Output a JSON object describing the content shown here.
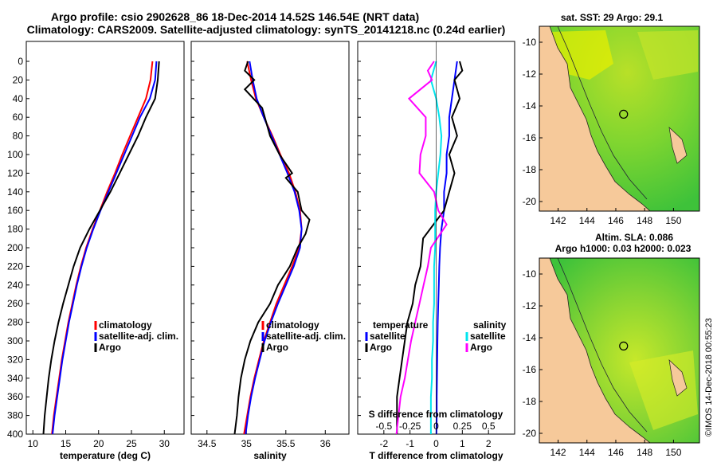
{
  "header": {
    "line1": "Argo profile: csio 2902628_86 18-Dec-2014 14.52S 146.54E (NRT data)",
    "line2": "Climatology: CARS2009. Satellite-adjusted climatology: synTS_20141218.nc (0.24d earlier)"
  },
  "watermark": "©IMOS 14-Dec-2018 00:55:23",
  "colors": {
    "climatology": "#ff0000",
    "satellite": "#0000ff",
    "argo": "#000000",
    "temp_diff_argo": "#000000",
    "salinity_sat": "#00e5ee",
    "salinity_argo": "#ff00ff",
    "land": "#f6c99a",
    "ocean_green": "#3ec23a",
    "ocean_light": "#a8e02a",
    "ocean_yellow": "#e8f000"
  },
  "depth_ticks": [
    "0",
    "20",
    "40",
    "60",
    "80",
    "100",
    "120",
    "140",
    "160",
    "180",
    "200",
    "220",
    "240",
    "260",
    "280",
    "300",
    "320",
    "340",
    "360",
    "380",
    "400"
  ],
  "chart_data": [
    {
      "type": "line",
      "id": "temperature",
      "xlabel": "temperature (deg C)",
      "ylabel": "depth",
      "xlim": [
        9,
        33
      ],
      "ylim": [
        400,
        0
      ],
      "x_ticks": [
        "10",
        "15",
        "20",
        "25",
        "30"
      ],
      "legend": [
        "climatology",
        "satellite-adj. clim.",
        "Argo"
      ],
      "series": [
        {
          "name": "climatology",
          "points": [
            [
              28.2,
              0
            ],
            [
              27.9,
              20
            ],
            [
              27.2,
              40
            ],
            [
              26.0,
              60
            ],
            [
              24.8,
              80
            ],
            [
              23.6,
              100
            ],
            [
              22.5,
              120
            ],
            [
              21.3,
              140
            ],
            [
              20.2,
              160
            ],
            [
              19.1,
              180
            ],
            [
              18.1,
              200
            ],
            [
              17.3,
              220
            ],
            [
              16.6,
              240
            ],
            [
              16.0,
              260
            ],
            [
              15.4,
              280
            ],
            [
              14.9,
              300
            ],
            [
              14.4,
              320
            ],
            [
              14.0,
              340
            ],
            [
              13.6,
              360
            ],
            [
              13.2,
              380
            ],
            [
              12.9,
              400
            ]
          ]
        },
        {
          "name": "satellite-adj. clim.",
          "points": [
            [
              28.8,
              0
            ],
            [
              28.6,
              20
            ],
            [
              27.8,
              40
            ],
            [
              26.3,
              60
            ],
            [
              25.1,
              80
            ],
            [
              23.9,
              100
            ],
            [
              22.7,
              120
            ],
            [
              21.5,
              140
            ],
            [
              20.3,
              160
            ],
            [
              19.2,
              180
            ],
            [
              18.2,
              200
            ],
            [
              17.4,
              220
            ],
            [
              16.7,
              240
            ],
            [
              16.1,
              260
            ],
            [
              15.5,
              280
            ],
            [
              15.0,
              300
            ],
            [
              14.5,
              320
            ],
            [
              14.1,
              340
            ],
            [
              13.7,
              360
            ],
            [
              13.3,
              380
            ],
            [
              13.0,
              400
            ]
          ]
        },
        {
          "name": "Argo",
          "points": [
            [
              29.2,
              0
            ],
            [
              29.0,
              20
            ],
            [
              28.6,
              40
            ],
            [
              27.2,
              60
            ],
            [
              26.0,
              80
            ],
            [
              24.6,
              100
            ],
            [
              23.2,
              120
            ],
            [
              21.8,
              140
            ],
            [
              20.2,
              160
            ],
            [
              18.6,
              180
            ],
            [
              17.2,
              200
            ],
            [
              16.2,
              220
            ],
            [
              15.4,
              240
            ],
            [
              14.6,
              260
            ],
            [
              13.9,
              280
            ],
            [
              13.3,
              300
            ],
            [
              12.8,
              320
            ],
            [
              12.4,
              340
            ],
            [
              12.1,
              360
            ],
            [
              11.8,
              380
            ],
            [
              11.6,
              400
            ]
          ]
        }
      ]
    },
    {
      "type": "line",
      "id": "salinity",
      "xlabel": "salinity",
      "ylabel": "depth",
      "xlim": [
        34.3,
        36.3
      ],
      "ylim": [
        400,
        0
      ],
      "x_ticks": [
        "34.5",
        "35",
        "35.5",
        "36"
      ],
      "legend": [
        "climatology",
        "satellite-adj. clim.",
        "Argo"
      ],
      "series": [
        {
          "name": "climatology",
          "points": [
            [
              35.01,
              0
            ],
            [
              35.06,
              20
            ],
            [
              35.12,
              40
            ],
            [
              35.22,
              60
            ],
            [
              35.33,
              80
            ],
            [
              35.43,
              100
            ],
            [
              35.54,
              120
            ],
            [
              35.62,
              140
            ],
            [
              35.68,
              160
            ],
            [
              35.7,
              180
            ],
            [
              35.67,
              200
            ],
            [
              35.58,
              220
            ],
            [
              35.48,
              240
            ],
            [
              35.38,
              260
            ],
            [
              35.3,
              280
            ],
            [
              35.22,
              300
            ],
            [
              35.16,
              320
            ],
            [
              35.1,
              340
            ],
            [
              35.05,
              360
            ],
            [
              35.01,
              380
            ],
            [
              34.97,
              400
            ]
          ]
        },
        {
          "name": "satellite-adj. clim.",
          "points": [
            [
              35.04,
              0
            ],
            [
              35.08,
              20
            ],
            [
              35.13,
              40
            ],
            [
              35.22,
              60
            ],
            [
              35.32,
              80
            ],
            [
              35.42,
              100
            ],
            [
              35.52,
              120
            ],
            [
              35.61,
              140
            ],
            [
              35.67,
              160
            ],
            [
              35.7,
              180
            ],
            [
              35.68,
              200
            ],
            [
              35.6,
              220
            ],
            [
              35.5,
              240
            ],
            [
              35.4,
              260
            ],
            [
              35.31,
              280
            ],
            [
              35.23,
              300
            ],
            [
              35.17,
              320
            ],
            [
              35.11,
              340
            ],
            [
              35.06,
              360
            ],
            [
              35.02,
              380
            ],
            [
              34.99,
              400
            ]
          ]
        },
        {
          "name": "Argo",
          "points": [
            [
              35.02,
              0
            ],
            [
              34.98,
              10
            ],
            [
              35.1,
              20
            ],
            [
              34.98,
              30
            ],
            [
              35.2,
              50
            ],
            [
              35.3,
              80
            ],
            [
              35.42,
              100
            ],
            [
              35.58,
              120
            ],
            [
              35.5,
              125
            ],
            [
              35.65,
              140
            ],
            [
              35.7,
              160
            ],
            [
              35.8,
              170
            ],
            [
              35.75,
              185
            ],
            [
              35.65,
              200
            ],
            [
              35.55,
              220
            ],
            [
              35.4,
              240
            ],
            [
              35.3,
              260
            ],
            [
              35.15,
              280
            ],
            [
              35.05,
              300
            ],
            [
              34.98,
              320
            ],
            [
              34.93,
              340
            ],
            [
              34.9,
              360
            ],
            [
              34.88,
              380
            ],
            [
              34.85,
              400
            ]
          ]
        }
      ]
    },
    {
      "type": "line",
      "id": "differences",
      "xlabel": "T difference from climatology",
      "xlim": [
        -3,
        3
      ],
      "ylim": [
        400,
        0
      ],
      "x_ticks": [
        "-2",
        "-1",
        "0",
        "1",
        "2"
      ],
      "top_axis_label": "S difference from climatology",
      "top_x_ticks": [
        "-0.5",
        "-0.25",
        "0",
        "0.25",
        "0.5"
      ],
      "legend_left_title": "temperature",
      "legend_right_title": "salinity",
      "legend": [
        "satellite",
        "Argo",
        "satellite",
        "Argo"
      ],
      "series": [
        {
          "name": "temperature satellite",
          "points": [
            [
              0.8,
              0
            ],
            [
              0.7,
              20
            ],
            [
              0.6,
              40
            ],
            [
              0.5,
              60
            ],
            [
              0.5,
              80
            ],
            [
              0.4,
              100
            ],
            [
              0.4,
              120
            ],
            [
              0.3,
              140
            ],
            [
              0.3,
              160
            ],
            [
              0.2,
              180
            ],
            [
              0.15,
              200
            ],
            [
              0.12,
              220
            ],
            [
              0.1,
              240
            ],
            [
              0.08,
              260
            ],
            [
              0.06,
              280
            ],
            [
              0.05,
              300
            ],
            [
              0.04,
              320
            ],
            [
              0.03,
              340
            ],
            [
              0.02,
              360
            ],
            [
              0.02,
              380
            ],
            [
              0.01,
              400
            ]
          ]
        },
        {
          "name": "temperature Argo",
          "points": [
            [
              0.9,
              0
            ],
            [
              1.0,
              10
            ],
            [
              0.7,
              20
            ],
            [
              0.9,
              40
            ],
            [
              0.6,
              60
            ],
            [
              0.8,
              80
            ],
            [
              0.5,
              100
            ],
            [
              0.7,
              120
            ],
            [
              0.5,
              140
            ],
            [
              0.3,
              160
            ],
            [
              -0.5,
              190
            ],
            [
              -0.6,
              220
            ],
            [
              -0.8,
              240
            ],
            [
              -0.9,
              260
            ],
            [
              -1.1,
              280
            ],
            [
              -1.2,
              300
            ],
            [
              -1.3,
              320
            ],
            [
              -1.4,
              340
            ],
            [
              -1.5,
              360
            ],
            [
              -1.5,
              380
            ],
            [
              -1.5,
              400
            ]
          ]
        },
        {
          "name": "salinity satellite",
          "points": [
            [
              0.0,
              0
            ],
            [
              -0.05,
              20
            ],
            [
              0.0,
              40
            ],
            [
              0.03,
              60
            ],
            [
              0.05,
              80
            ],
            [
              0.04,
              100
            ],
            [
              0.02,
              120
            ],
            [
              0.0,
              140
            ],
            [
              -0.01,
              160
            ],
            [
              -0.01,
              180
            ],
            [
              -0.01,
              200
            ],
            [
              -0.02,
              220
            ],
            [
              -0.02,
              240
            ],
            [
              -0.02,
              260
            ],
            [
              -0.03,
              280
            ],
            [
              -0.03,
              300
            ],
            [
              -0.04,
              320
            ],
            [
              -0.04,
              340
            ],
            [
              -0.05,
              360
            ],
            [
              -0.05,
              380
            ],
            [
              -0.05,
              400
            ]
          ]
        },
        {
          "name": "salinity Argo",
          "points": [
            [
              -0.02,
              0
            ],
            [
              -0.08,
              10
            ],
            [
              -0.04,
              20
            ],
            [
              -0.26,
              40
            ],
            [
              -0.1,
              60
            ],
            [
              -0.1,
              80
            ],
            [
              -0.15,
              100
            ],
            [
              -0.16,
              120
            ],
            [
              -0.02,
              140
            ],
            [
              0.02,
              160
            ],
            [
              0.1,
              175
            ],
            [
              -0.05,
              200
            ],
            [
              -0.08,
              220
            ],
            [
              -0.12,
              240
            ],
            [
              -0.16,
              260
            ],
            [
              -0.2,
              280
            ],
            [
              -0.24,
              300
            ],
            [
              -0.27,
              320
            ],
            [
              -0.3,
              340
            ],
            [
              -0.34,
              360
            ],
            [
              -0.36,
              380
            ],
            [
              -0.38,
              400
            ]
          ]
        }
      ]
    },
    {
      "type": "heatmap",
      "id": "sst-map",
      "title": "sat. SST: 29 Argo: 29.1",
      "x_ticks": [
        "142",
        "144",
        "146",
        "148",
        "150"
      ],
      "y_ticks": [
        "-10",
        "-12",
        "-14",
        "-16",
        "-18",
        "-20"
      ],
      "xlim": [
        140.7,
        151.8
      ],
      "ylim": [
        -20.6,
        -9.0
      ],
      "argo_position": {
        "lon": 146.54,
        "lat": -14.52
      }
    },
    {
      "type": "heatmap",
      "id": "sla-map",
      "title_line1": "Altim. SLA: 0.086",
      "title_line2": "Argo h1000: 0.03 h2000: 0.023",
      "x_ticks": [
        "142",
        "144",
        "146",
        "148",
        "150"
      ],
      "y_ticks": [
        "-10",
        "-12",
        "-14",
        "-16",
        "-18",
        "-20"
      ],
      "xlim": [
        140.7,
        151.8
      ],
      "ylim": [
        -20.6,
        -9.0
      ],
      "argo_position": {
        "lon": 146.54,
        "lat": -14.52
      }
    }
  ]
}
